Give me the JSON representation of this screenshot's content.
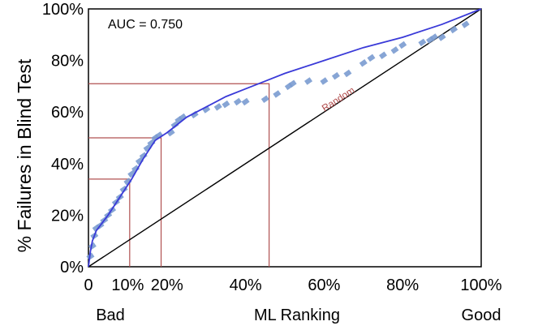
{
  "chart_data": {
    "type": "line",
    "title": "",
    "xlabel": "ML Ranking",
    "ylabel": "% Failures in Blind Test",
    "xlim": [
      0,
      100
    ],
    "ylim": [
      0,
      100
    ],
    "x_ticks": [
      {
        "value": 0,
        "label": "0"
      },
      {
        "value": 10,
        "label": "10%"
      },
      {
        "value": 20,
        "label": "20%"
      },
      {
        "value": 40,
        "label": "40%"
      },
      {
        "value": 60,
        "label": "60%"
      },
      {
        "value": 80,
        "label": "80%"
      },
      {
        "value": 100,
        "label": "100%"
      }
    ],
    "y_ticks": [
      {
        "value": 0,
        "label": "0%"
      },
      {
        "value": 20,
        "label": "20%"
      },
      {
        "value": 40,
        "label": "40%"
      },
      {
        "value": 60,
        "label": "60%"
      },
      {
        "value": 80,
        "label": "80%"
      },
      {
        "value": 100,
        "label": "100%"
      }
    ],
    "x_end_labels": {
      "left": "Bad",
      "right": "Good"
    },
    "annotation": "AUC = 0.750",
    "grid": false,
    "series": [
      {
        "type": "line",
        "color": "#3a3ad8",
        "x": [
          0,
          0.5,
          1,
          2,
          3,
          5,
          8,
          11,
          14,
          17,
          20,
          25,
          30,
          35,
          40,
          45,
          50,
          60,
          70,
          80,
          90,
          100
        ],
        "y": [
          0,
          6,
          10,
          14,
          16,
          20,
          27,
          34,
          42,
          49,
          52,
          58,
          62,
          66,
          69,
          72,
          75,
          80,
          85,
          89,
          94,
          100
        ]
      },
      {
        "type": "scatter",
        "color": "#7a9bd0",
        "x": [
          0.5,
          1,
          1.5,
          2,
          3,
          4,
          5,
          6,
          7,
          8,
          9,
          10,
          11,
          12,
          13,
          14,
          15,
          16,
          17,
          18,
          21,
          22,
          23,
          24,
          27,
          30,
          33,
          35,
          38,
          40,
          45,
          48,
          51,
          52,
          56,
          60,
          63,
          66,
          70,
          72,
          75,
          78,
          80,
          85,
          87,
          88,
          90,
          93,
          96
        ],
        "y": [
          4,
          8,
          12,
          15,
          16,
          18,
          20,
          22,
          25,
          27,
          30,
          33,
          36,
          38,
          41,
          43,
          46,
          48,
          50,
          51,
          52,
          55,
          57,
          58,
          59,
          61,
          62,
          63,
          64,
          64,
          65,
          67,
          70,
          71,
          72,
          72,
          74,
          75,
          79,
          81,
          82,
          84,
          86,
          87,
          88,
          89,
          89,
          92,
          94
        ]
      },
      {
        "name": "Random",
        "type": "line",
        "color": "#000000",
        "x": [
          0,
          100
        ],
        "y": [
          0,
          100
        ]
      }
    ],
    "reference_lines": {
      "color": "#b05050",
      "points": [
        {
          "x": 10.5,
          "y": 34
        },
        {
          "x": 18.5,
          "y": 50
        },
        {
          "x": 46,
          "y": 71
        }
      ]
    }
  }
}
